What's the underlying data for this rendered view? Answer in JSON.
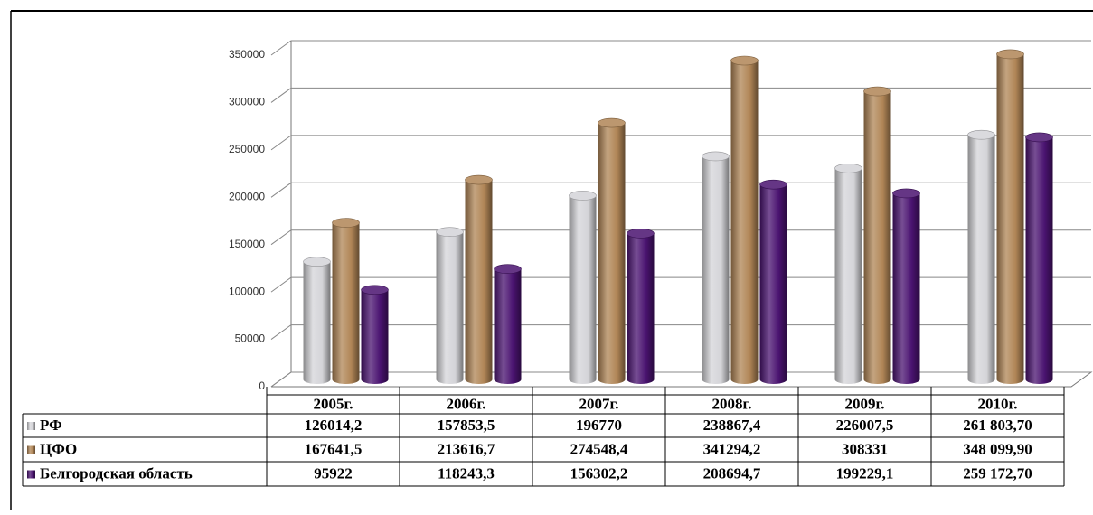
{
  "chart_data": {
    "type": "bar",
    "categories": [
      "2005г.",
      "2006г.",
      "2007г.",
      "2008г.",
      "2009г.",
      "2010г."
    ],
    "series": [
      {
        "name": "РФ",
        "color": "#d4d4d8",
        "values": [
          126014.2,
          157853.5,
          196770,
          238867.4,
          226007.5,
          261803.7
        ],
        "value_labels": [
          "126014,2",
          "157853,5",
          "196770",
          "238867,4",
          "226007,5",
          "261 803,70"
        ]
      },
      {
        "name": "ЦФО",
        "color": "#b08556",
        "values": [
          167641.5,
          213616.7,
          274548.4,
          341294.2,
          308331,
          348099.9
        ],
        "value_labels": [
          "167641,5",
          "213616,7",
          "274548,4",
          "341294,2",
          "308331",
          "348 099,90"
        ]
      },
      {
        "name": "Белгородская область",
        "color": "#4a1370",
        "values": [
          95922,
          118243.3,
          156302.2,
          208694.7,
          199229.1,
          259172.7
        ],
        "value_labels": [
          "95922",
          "118243,3",
          "156302,2",
          "208694,7",
          "199229,1",
          "259 172,70"
        ]
      }
    ],
    "ylim": [
      0,
      350000
    ],
    "yticks": [
      0,
      50000,
      100000,
      150000,
      200000,
      250000,
      300000,
      350000
    ],
    "grid": true
  }
}
